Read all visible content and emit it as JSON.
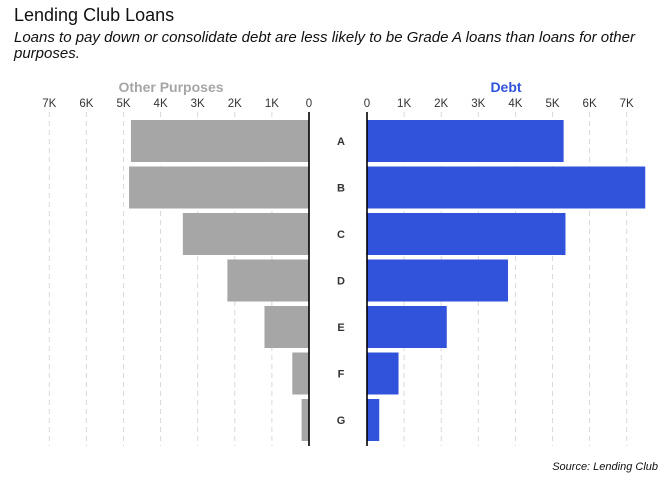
{
  "title": "Lending Club Loans",
  "subtitle": "Loans to pay down or consolidate debt are less likely to be Grade A loans than loans for other purposes.",
  "caption": "Source: Lending Club",
  "chart_data": {
    "type": "bar",
    "orientation": "horizontal-back-to-back",
    "categories": [
      "A",
      "B",
      "C",
      "D",
      "E",
      "F",
      "G"
    ],
    "series": [
      {
        "name": "Other Purposes",
        "color": "#a6a6a6",
        "values": [
          4800,
          4850,
          3400,
          2200,
          1200,
          450,
          200
        ]
      },
      {
        "name": "Debt",
        "color": "#3153db",
        "values": [
          5300,
          7500,
          5350,
          3800,
          2150,
          850,
          330
        ]
      }
    ],
    "xlim": [
      0,
      7500
    ],
    "ticks": [
      0,
      1000,
      2000,
      3000,
      4000,
      5000,
      6000,
      7000
    ],
    "tick_labels": [
      "0",
      "1K",
      "2K",
      "3K",
      "4K",
      "5K",
      "6K",
      "7K"
    ],
    "grid": "vertical dashed"
  }
}
